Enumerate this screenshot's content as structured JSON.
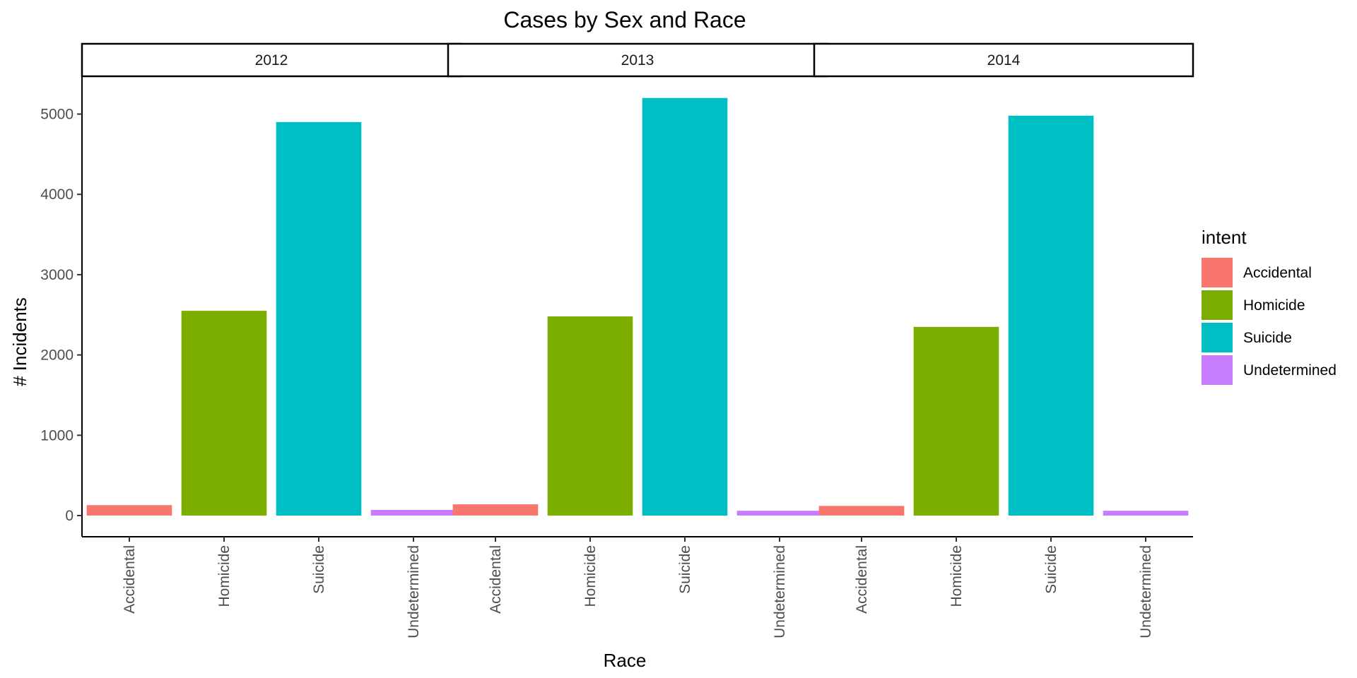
{
  "chart_data": {
    "type": "bar",
    "title": "Cases by Sex and Race",
    "xlabel": "Race",
    "ylabel": "# Incidents",
    "ylim": [
      0,
      5500
    ],
    "y_ticks": [
      "0",
      "1000",
      "2000",
      "3000",
      "4000",
      "5000"
    ],
    "y_tick_values": [
      0,
      1000,
      2000,
      3000,
      4000,
      5000
    ],
    "grid": false,
    "legend_position": "right",
    "legend_title": "intent",
    "categories": [
      "Accidental",
      "Homicide",
      "Suicide",
      "Undetermined"
    ],
    "colors": {
      "Accidental": "#F8766D",
      "Homicide": "#7CAE00",
      "Suicide": "#00BFC4",
      "Undetermined": "#C77CFF"
    },
    "facets": [
      {
        "label": "2012",
        "values": [
          130,
          2550,
          4900,
          70
        ]
      },
      {
        "label": "2013",
        "values": [
          140,
          2480,
          5200,
          60
        ]
      },
      {
        "label": "2014",
        "values": [
          120,
          2350,
          4980,
          60
        ]
      }
    ]
  }
}
